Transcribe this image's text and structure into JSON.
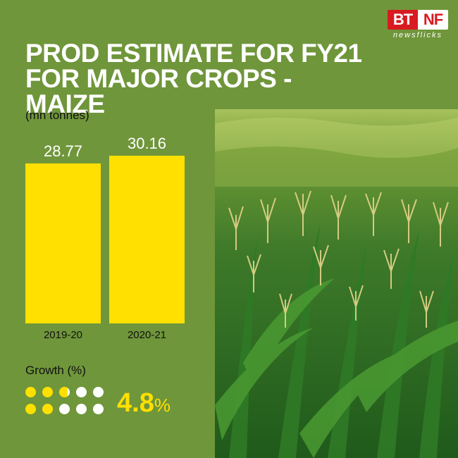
{
  "brand": {
    "top_left": "BT",
    "top_right": "NF",
    "sub": "newsflicks"
  },
  "title": "PROD ESTIMATE FOR FY21 FOR MAJOR CROPS - MAIZE",
  "unit_label": "(mn tonnes)",
  "chart_data": {
    "type": "bar",
    "categories": [
      "2019-20",
      "2020-21"
    ],
    "values": [
      28.77,
      30.16
    ],
    "value_labels": [
      "28.77",
      "30.16"
    ],
    "bar_color": "#ffe000",
    "ylim": [
      0,
      30.16
    ]
  },
  "growth": {
    "label": "Growth (%)",
    "value": "4.8",
    "unit": "%",
    "filled_fraction": 0.48,
    "filled_color": "#ffe000",
    "empty_color": "#ffffff"
  },
  "photo": {
    "icon": "maize-field-photo"
  }
}
